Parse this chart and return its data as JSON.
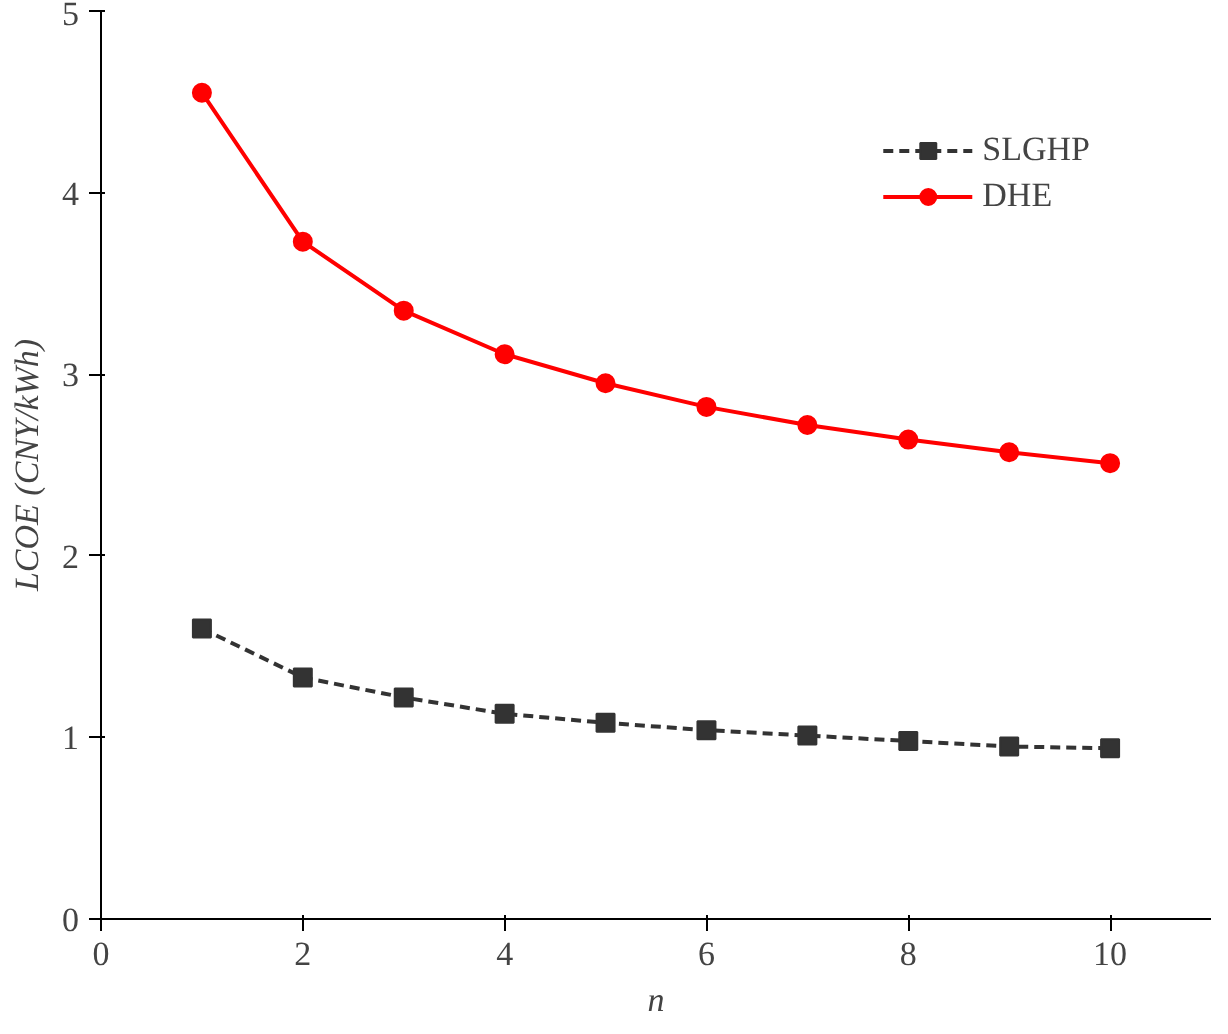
{
  "chart_data": {
    "type": "line",
    "xlabel": "n",
    "ylabel": "LCOE (CNY/kWh)",
    "x": [
      1,
      2,
      3,
      4,
      5,
      6,
      7,
      8,
      9,
      10
    ],
    "xlim": [
      0,
      11
    ],
    "xticks": [
      0,
      2,
      4,
      6,
      8,
      10
    ],
    "ylim": [
      0,
      5
    ],
    "yticks": [
      0,
      1,
      2,
      3,
      4,
      5
    ],
    "grid": false,
    "legend": "top right",
    "series": [
      {
        "name": "SLGHP",
        "color": "#333333",
        "marker": "square",
        "line_style": "dashed",
        "values": [
          1.6,
          1.33,
          1.22,
          1.13,
          1.08,
          1.04,
          1.01,
          0.98,
          0.95,
          0.94
        ]
      },
      {
        "name": "DHE",
        "color": "#ff0000",
        "marker": "circle",
        "line_style": "solid",
        "values": [
          4.55,
          3.73,
          3.35,
          3.11,
          2.95,
          2.82,
          2.72,
          2.64,
          2.57,
          2.51
        ]
      }
    ]
  }
}
